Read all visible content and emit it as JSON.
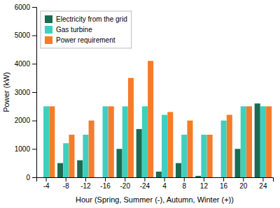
{
  "chart_data": {
    "type": "bar",
    "xlabel": "Hour (Spring, Summer (-), Autumn, Winter (+))",
    "ylabel": "Power (kW)",
    "categories": [
      "-4",
      "-8",
      "-12",
      "-16",
      "-20",
      "-24",
      "4",
      "8",
      "12",
      "16",
      "20",
      "24"
    ],
    "series": [
      {
        "name": "Electricity from the grid",
        "color": "#1a6b52",
        "values": [
          0,
          500,
          600,
          0,
          1000,
          1700,
          200,
          500,
          50,
          0,
          1000,
          2600
        ]
      },
      {
        "name": "Gas turbine",
        "color": "#3ecfbf",
        "values": [
          2500,
          1200,
          1500,
          2500,
          2500,
          2500,
          2200,
          1500,
          1500,
          2000,
          2500,
          2500
        ]
      },
      {
        "name": "Power requirement",
        "color": "#f57c2a",
        "values": [
          2500,
          1500,
          2000,
          2500,
          3500,
          4100,
          2300,
          2000,
          1500,
          2200,
          2500,
          2500
        ]
      }
    ],
    "ylim": [
      0,
      6000
    ],
    "yticks": [
      0,
      1000,
      2000,
      3000,
      4000,
      5000,
      6000
    ],
    "grid": false,
    "legend": "upper left"
  }
}
